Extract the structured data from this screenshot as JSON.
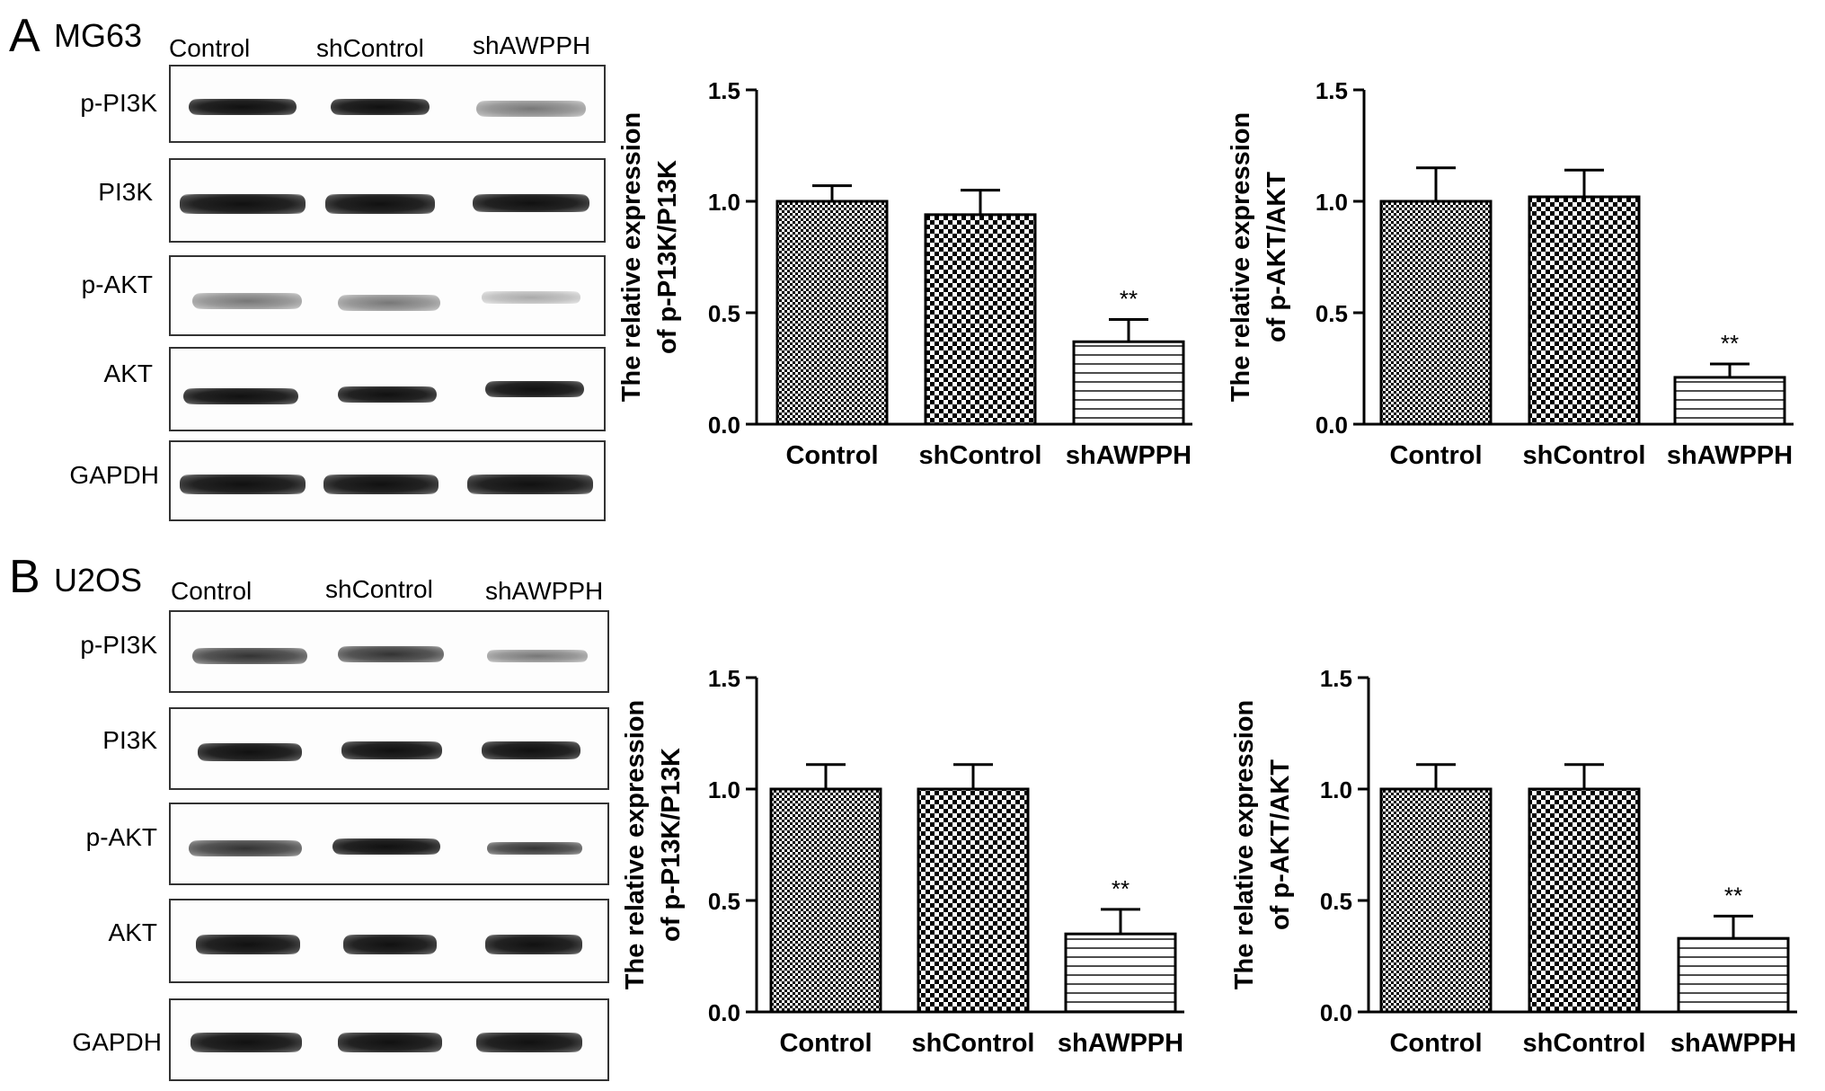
{
  "panels": [
    {
      "letter": "A",
      "cell_line": "MG63",
      "lanes": [
        "Control",
        "shControl",
        "shAWPPH"
      ],
      "proteins": [
        "p-PI3K",
        "PI3K",
        "p-AKT",
        "AKT",
        "GAPDH"
      ]
    },
    {
      "letter": "B",
      "cell_line": "U2OS",
      "lanes": [
        "Control",
        "shControl",
        "shAWPPH"
      ],
      "proteins": [
        "p-PI3K",
        "PI3K",
        "p-AKT",
        "AKT",
        "GAPDH"
      ]
    }
  ],
  "chart_data": [
    {
      "type": "bar",
      "panel": "A",
      "categories": [
        "Control",
        "shControl",
        "shAWPPH"
      ],
      "values": [
        1.0,
        0.94,
        0.37
      ],
      "errors": [
        0.07,
        0.11,
        0.1
      ],
      "significance": [
        "",
        "",
        "**"
      ],
      "patterns": [
        "fine-check",
        "coarse-check",
        "horizontal-lines"
      ],
      "ylabel_lines": [
        "The relative expression",
        "of p-P13K/P13K"
      ],
      "xlabel": "",
      "ylim": [
        0,
        1.5
      ],
      "yticks": [
        "0.0",
        "0.5",
        "1.0",
        "1.5"
      ]
    },
    {
      "type": "bar",
      "panel": "A",
      "categories": [
        "Control",
        "shControl",
        "shAWPPH"
      ],
      "values": [
        1.0,
        1.02,
        0.21
      ],
      "errors": [
        0.15,
        0.12,
        0.06
      ],
      "significance": [
        "",
        "",
        "**"
      ],
      "patterns": [
        "fine-check",
        "coarse-check",
        "horizontal-lines"
      ],
      "ylabel_lines": [
        "The relative expression",
        "of p-AKT/AKT"
      ],
      "xlabel": "",
      "ylim": [
        0,
        1.5
      ],
      "yticks": [
        "0.0",
        "0.5",
        "1.0",
        "1.5"
      ]
    },
    {
      "type": "bar",
      "panel": "B",
      "categories": [
        "Control",
        "shControl",
        "shAWPPH"
      ],
      "values": [
        1.0,
        1.0,
        0.35
      ],
      "errors": [
        0.11,
        0.11,
        0.11
      ],
      "significance": [
        "",
        "",
        "**"
      ],
      "patterns": [
        "fine-check",
        "coarse-check",
        "horizontal-lines"
      ],
      "ylabel_lines": [
        "The relative expression",
        "of p-P13K/P13K"
      ],
      "xlabel": "",
      "ylim": [
        0,
        1.5
      ],
      "yticks": [
        "0.0",
        "0.5",
        "1.0",
        "1.5"
      ]
    },
    {
      "type": "bar",
      "panel": "B",
      "categories": [
        "Control",
        "shControl",
        "shAWPPH"
      ],
      "values": [
        1.0,
        1.0,
        0.33
      ],
      "errors": [
        0.11,
        0.11,
        0.1
      ],
      "significance": [
        "",
        "",
        "**"
      ],
      "patterns": [
        "fine-check",
        "coarse-check",
        "horizontal-lines"
      ],
      "ylabel_lines": [
        "The relative expression",
        "of p-AKT/AKT"
      ],
      "xlabel": "",
      "ylim": [
        0,
        1.5
      ],
      "yticks": [
        "0.0",
        "0.5",
        "1.0",
        "1.5"
      ]
    }
  ]
}
